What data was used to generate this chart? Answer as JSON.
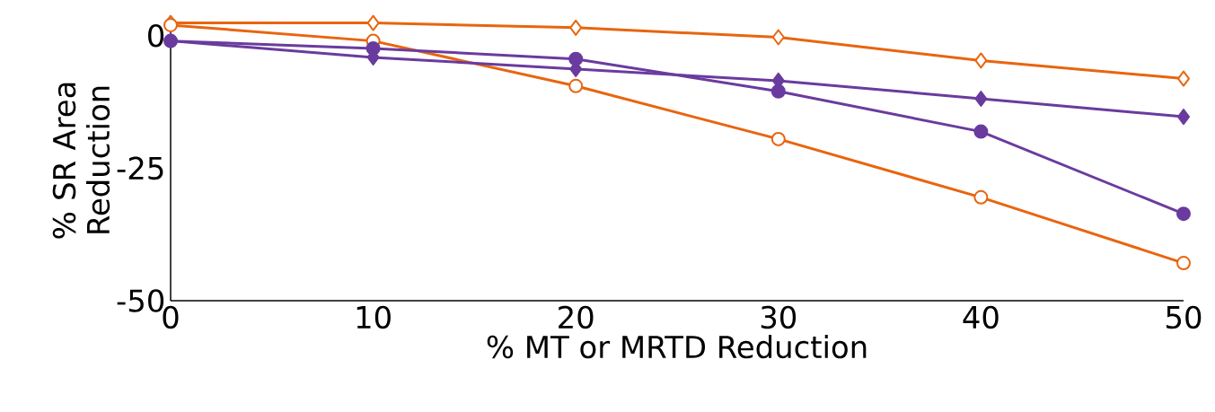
{
  "chart_data": {
    "type": "line",
    "xlabel": "% MT or MRTD Reduction",
    "ylabel": "% SR Area Reduction",
    "x": [
      0,
      10,
      20,
      30,
      40,
      50
    ],
    "series": [
      {
        "color": "#e8650f",
        "marker": "diamond",
        "values": [
          2.4,
          2.4,
          1.5,
          -0.3,
          -4.7,
          -8.1
        ]
      },
      {
        "color": "#e8650f",
        "marker": "circle",
        "values": [
          2,
          -1,
          -9.5,
          -19.5,
          -30.5,
          -42.9
        ]
      },
      {
        "color": "#6a3b9e",
        "marker": "circle",
        "values": [
          -1,
          -2.4,
          -4.4,
          -10.5,
          -18.1,
          -33.6
        ]
      },
      {
        "color": "#6a3b9e",
        "marker": "diamond",
        "values": [
          -1,
          -4.1,
          -6.3,
          -8.5,
          -11.9,
          -15.3
        ]
      }
    ],
    "xlim": [
      0,
      50
    ],
    "ylim": [
      -50,
      3
    ],
    "xticks": [
      0,
      10,
      20,
      30,
      40,
      50
    ],
    "yticks": [
      -50,
      -25,
      0
    ],
    "grid": false
  }
}
